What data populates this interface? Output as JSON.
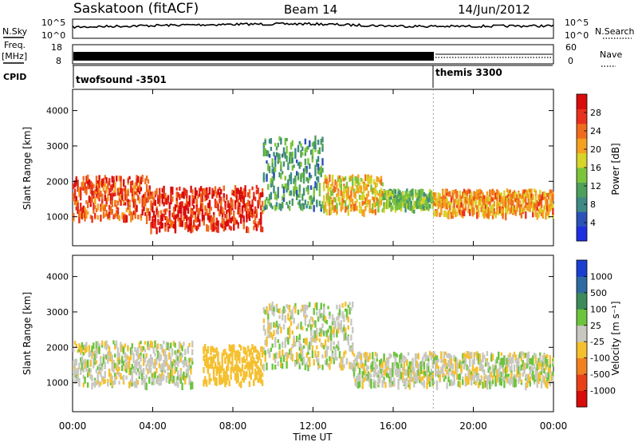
{
  "header": {
    "station": "Saskatoon (fitACF)",
    "beam": "Beam 14",
    "date": "14/Jun/2012"
  },
  "status_panels": {
    "nsky_label": "N.Sky",
    "nsky_ticks": [
      "10^5",
      "10^0"
    ],
    "nsearch_label": "N.Search",
    "nsearch_ticks": [
      "10^5",
      "10^0"
    ],
    "freq_label_line1": "Freq.",
    "freq_label_line2": "[MHz]",
    "freq_ticks": [
      "18",
      "8"
    ],
    "nave_label": "Nave",
    "nave_ticks": [
      "60",
      "0"
    ],
    "cpid_label": "CPID",
    "cpid_programs": [
      {
        "name": "twofsound -3501",
        "start": "00:00",
        "end": "18:00"
      },
      {
        "name": "themis 3300",
        "start": "18:00",
        "end": "24:00"
      }
    ]
  },
  "chart_data": [
    {
      "type": "heatmap",
      "panel": "power",
      "ylabel": "Slant Range [km]",
      "yticks": [
        1000,
        2000,
        3000,
        4000
      ],
      "ylim": [
        180,
        4600
      ],
      "xlim": [
        0,
        24
      ],
      "colorbar": {
        "label": "Power [dB]",
        "ticks": [
          "4",
          "8",
          "12",
          "16",
          "20",
          "24",
          "28"
        ],
        "colors": [
          "#1f2fe0",
          "#2a52b8",
          "#3f8a84",
          "#4ea05a",
          "#7cc43c",
          "#d7d42a",
          "#f5a020",
          "#f06c1c",
          "#e8301c",
          "#d80c0c"
        ]
      },
      "bands": [
        {
          "t0": 0.0,
          "t1": 3.8,
          "r0": 1000,
          "r1": 2200,
          "level": 24
        },
        {
          "t0": 3.8,
          "t1": 9.5,
          "r0": 700,
          "r1": 1900,
          "level": 26
        },
        {
          "t0": 9.5,
          "t1": 12.5,
          "r0": 1300,
          "r1": 3300,
          "level": 10
        },
        {
          "t0": 12.5,
          "t1": 15.5,
          "r0": 1200,
          "r1": 2200,
          "level": 18
        },
        {
          "t0": 15.5,
          "t1": 18.0,
          "r0": 1300,
          "r1": 1800,
          "level": 12
        },
        {
          "t0": 18.0,
          "t1": 24.0,
          "r0": 1100,
          "r1": 1800,
          "level": 20
        }
      ]
    },
    {
      "type": "heatmap",
      "panel": "velocity",
      "ylabel": "Slant Range [km]",
      "yticks": [
        1000,
        2000,
        3000,
        4000
      ],
      "ylim": [
        180,
        4600
      ],
      "xlabel": "Time UT",
      "xticks": [
        "00:00",
        "04:00",
        "08:00",
        "12:00",
        "16:00",
        "20:00",
        "00:00"
      ],
      "xlim": [
        0,
        24
      ],
      "colorbar": {
        "label": "Velocity [m s⁻¹]",
        "ticks": [
          "1000",
          "500",
          "100",
          "25",
          "-25",
          "-100",
          "-500",
          "-1000"
        ],
        "colors": [
          "#1a3fd0",
          "#2f6aa0",
          "#3d8a5a",
          "#6cc43c",
          "#c8c8c0",
          "#f5c030",
          "#f08020",
          "#e84018",
          "#d80c0c"
        ]
      },
      "bands": [
        {
          "t0": 0.0,
          "t1": 6.0,
          "r0": 1000,
          "r1": 2200,
          "level": 0
        },
        {
          "t0": 6.5,
          "t1": 9.5,
          "r0": 1000,
          "r1": 2100,
          "level": -300
        },
        {
          "t0": 9.5,
          "t1": 14.0,
          "r0": 1500,
          "r1": 3300,
          "level": 0
        },
        {
          "t0": 14.0,
          "t1": 24.0,
          "r0": 1000,
          "r1": 1900,
          "level": 0
        }
      ]
    }
  ]
}
